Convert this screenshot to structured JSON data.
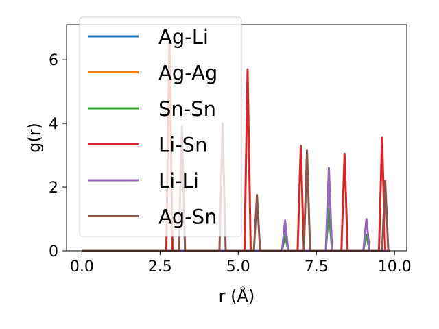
{
  "chart_data": {
    "type": "line",
    "title": "",
    "xlabel": "r (Å)",
    "ylabel": "g(r)",
    "xlim": [
      -0.49,
      10.39
    ],
    "ylim": [
      0,
      7.1
    ],
    "xticks": [
      0.0,
      2.5,
      5.0,
      7.5,
      10.0
    ],
    "xtick_labels": [
      "0.0",
      "2.5",
      "5.0",
      "7.5",
      "10.0"
    ],
    "yticks": [
      0,
      2,
      4,
      6
    ],
    "ytick_labels": [
      "0",
      "2",
      "4",
      "6"
    ],
    "grid": false,
    "legend_position": "top-left",
    "series": [
      {
        "name": "Ag-Li",
        "color": "#1f77b4",
        "peaks": []
      },
      {
        "name": "Ag-Ag",
        "color": "#ff7f0e",
        "peaks": []
      },
      {
        "name": "Sn-Sn",
        "color": "#2ca02c",
        "peaks": [
          [
            6.5,
            0.5
          ],
          [
            7.9,
            1.3
          ],
          [
            9.1,
            0.5
          ]
        ]
      },
      {
        "name": "Li-Sn",
        "color": "#d62728",
        "peaks": [
          [
            2.8,
            6.7
          ],
          [
            5.3,
            5.7
          ],
          [
            7.0,
            3.3
          ],
          [
            8.4,
            3.05
          ],
          [
            9.6,
            3.55
          ]
        ]
      },
      {
        "name": "Li-Li",
        "color": "#9467bd",
        "peaks": [
          [
            6.5,
            0.95
          ],
          [
            7.9,
            2.6
          ],
          [
            9.1,
            1.0
          ]
        ]
      },
      {
        "name": "Ag-Sn",
        "color": "#8c564b",
        "peaks": [
          [
            3.2,
            3.9
          ],
          [
            4.5,
            4.0
          ],
          [
            5.6,
            1.75
          ],
          [
            7.2,
            3.15
          ],
          [
            9.7,
            2.2
          ]
        ]
      }
    ],
    "x_range": [
      0.0,
      9.85
    ],
    "peak_halfwidth": 0.1
  }
}
